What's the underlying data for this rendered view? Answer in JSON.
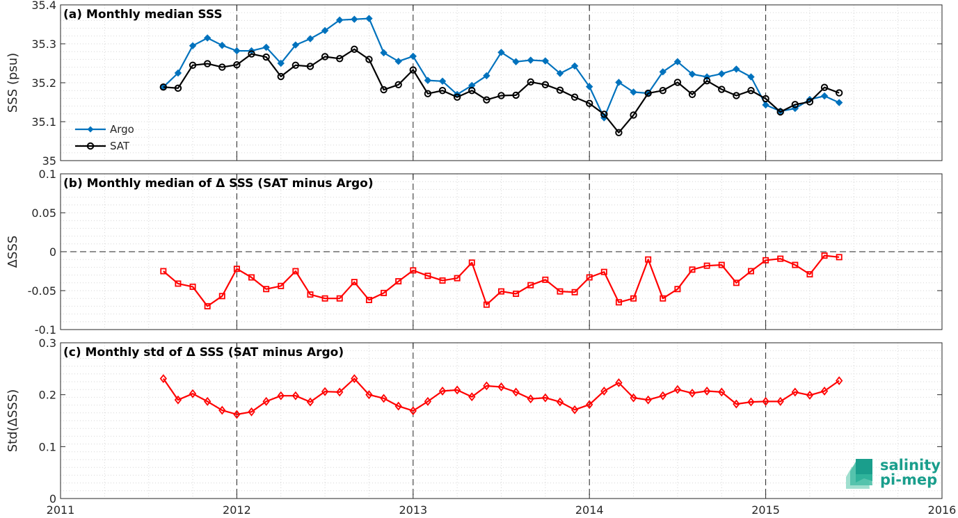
{
  "chart_data": [
    {
      "panel": "a",
      "type": "line",
      "title": "(a) Monthly median SSS",
      "xlabel": "",
      "ylabel": "SSS (psu)",
      "xlim": [
        2011,
        2016
      ],
      "ylim": [
        35.0,
        35.4
      ],
      "xticks": [
        "2011",
        "2012",
        "2013",
        "2014",
        "2015",
        "2016"
      ],
      "yticks": [
        "35",
        "35.1",
        "35.2",
        "35.3",
        "35.4"
      ],
      "grid": true,
      "legend": "bottom-left",
      "x_start": "2011-08",
      "x_step": "1 month",
      "series": [
        {
          "name": "Argo",
          "color": "#0072BD",
          "marker": "diamond-filled",
          "values": [
            35.189,
            35.225,
            35.295,
            35.315,
            35.296,
            35.282,
            35.282,
            35.291,
            35.25,
            35.297,
            35.313,
            35.334,
            35.361,
            35.363,
            35.365,
            35.277,
            35.255,
            35.268,
            35.206,
            35.204,
            35.17,
            35.193,
            35.218,
            35.278,
            35.254,
            35.258,
            35.256,
            35.224,
            35.243,
            35.19,
            35.11,
            35.201,
            35.176,
            35.173,
            35.228,
            35.254,
            35.222,
            35.215,
            35.223,
            35.235,
            35.215,
            35.143,
            35.127,
            35.134,
            35.157,
            35.166,
            35.149
          ]
        },
        {
          "name": "SAT",
          "color": "#000000",
          "marker": "circle-open",
          "values": [
            35.189,
            35.186,
            35.245,
            35.249,
            35.24,
            35.246,
            35.274,
            35.266,
            35.216,
            35.245,
            35.242,
            35.267,
            35.262,
            35.286,
            35.26,
            35.182,
            35.195,
            35.233,
            35.172,
            35.18,
            35.163,
            35.18,
            35.156,
            35.167,
            35.168,
            35.202,
            35.195,
            35.181,
            35.163,
            35.147,
            35.119,
            35.072,
            35.117,
            35.173,
            35.18,
            35.201,
            35.17,
            35.205,
            35.183,
            35.167,
            35.18,
            35.159,
            35.125,
            35.144,
            35.151,
            35.188,
            35.174
          ]
        }
      ]
    },
    {
      "panel": "b",
      "type": "line",
      "title": "(b) Monthly median of Δ SSS (SAT minus Argo)",
      "xlabel": "",
      "ylabel": "ΔSSS",
      "xlim": [
        2011,
        2016
      ],
      "ylim": [
        -0.1,
        0.1
      ],
      "xticks": [
        "2011",
        "2012",
        "2013",
        "2014",
        "2015",
        "2016"
      ],
      "yticks": [
        "-0.1",
        "-0.05",
        "0",
        "0.05",
        "0.1"
      ],
      "grid": true,
      "reference_line": 0,
      "x_start": "2011-08",
      "x_step": "1 month",
      "series": [
        {
          "color": "#FF0000",
          "marker": "square-open",
          "values": [
            -0.025,
            -0.041,
            -0.045,
            -0.07,
            -0.057,
            -0.022,
            -0.033,
            -0.048,
            -0.044,
            -0.025,
            -0.055,
            -0.06,
            -0.06,
            -0.039,
            -0.062,
            -0.053,
            -0.038,
            -0.024,
            -0.031,
            -0.037,
            -0.034,
            -0.014,
            -0.068,
            -0.051,
            -0.054,
            -0.043,
            -0.036,
            -0.051,
            -0.052,
            -0.033,
            -0.026,
            -0.065,
            -0.06,
            -0.01,
            -0.06,
            -0.048,
            -0.023,
            -0.018,
            -0.017,
            -0.04,
            -0.025,
            -0.011,
            -0.009,
            -0.017,
            -0.029,
            -0.005,
            -0.007
          ]
        }
      ]
    },
    {
      "panel": "c",
      "type": "line",
      "title": "(c) Monthly std of Δ SSS (SAT minus Argo)",
      "xlabel": "",
      "ylabel": "Std(ΔSSS)",
      "xlim": [
        2011,
        2016
      ],
      "ylim": [
        0,
        0.3
      ],
      "xticks": [
        "2011",
        "2012",
        "2013",
        "2014",
        "2015",
        "2016"
      ],
      "yticks": [
        "0",
        "0.1",
        "0.2",
        "0.3"
      ],
      "grid": true,
      "x_start": "2011-08",
      "x_step": "1 month",
      "series": [
        {
          "color": "#FF0000",
          "marker": "diamond-open",
          "values": [
            0.231,
            0.19,
            0.202,
            0.187,
            0.17,
            0.162,
            0.167,
            0.187,
            0.198,
            0.198,
            0.186,
            0.206,
            0.205,
            0.231,
            0.2,
            0.193,
            0.178,
            0.169,
            0.187,
            0.207,
            0.209,
            0.196,
            0.217,
            0.215,
            0.205,
            0.192,
            0.194,
            0.186,
            0.171,
            0.181,
            0.207,
            0.223,
            0.194,
            0.19,
            0.198,
            0.21,
            0.203,
            0.207,
            0.205,
            0.182,
            0.186,
            0.187,
            0.187,
            0.205,
            0.199,
            0.207,
            0.227
          ]
        }
      ]
    }
  ],
  "logo": {
    "line1": "salinity",
    "line2": "pi-mep",
    "color": "#1a9e8c"
  }
}
